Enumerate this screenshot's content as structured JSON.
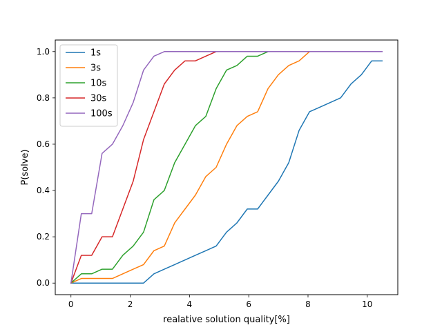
{
  "chart_data": {
    "type": "line",
    "title": "",
    "xlabel": "realative solution quality[%]",
    "ylabel": "P(solve)",
    "xlim": [
      -0.53,
      11.03
    ],
    "ylim": [
      -0.05,
      1.05
    ],
    "xticks": [
      0,
      2,
      4,
      6,
      8,
      10
    ],
    "xtick_labels": [
      "0",
      "2",
      "4",
      "6",
      "8",
      "10"
    ],
    "yticks": [
      0.0,
      0.2,
      0.4,
      0.6,
      0.8,
      1.0
    ],
    "ytick_labels": [
      "0.0",
      "0.2",
      "0.4",
      "0.6",
      "0.8",
      "1.0"
    ],
    "grid": false,
    "legend": "top-left",
    "series": [
      {
        "name": "1s",
        "color": "#1f77b4",
        "x": [
          0,
          0.35,
          0.7,
          1.05,
          1.4,
          1.75,
          2.1,
          2.45,
          2.8,
          3.15,
          3.5,
          3.85,
          4.2,
          4.55,
          4.9,
          5.25,
          5.6,
          5.95,
          6.3,
          6.65,
          7.0,
          7.35,
          7.7,
          8.05,
          8.4,
          8.75,
          9.1,
          9.45,
          9.8,
          10.15,
          10.5
        ],
        "y": [
          0,
          0,
          0,
          0,
          0,
          0,
          0,
          0,
          0.04,
          0.06,
          0.08,
          0.1,
          0.12,
          0.14,
          0.16,
          0.22,
          0.26,
          0.32,
          0.32,
          0.38,
          0.44,
          0.52,
          0.66,
          0.74,
          0.76,
          0.78,
          0.8,
          0.86,
          0.9,
          0.96,
          0.96
        ]
      },
      {
        "name": "3s",
        "color": "#ff7f0e",
        "x": [
          0,
          0.35,
          0.7,
          1.05,
          1.4,
          1.75,
          2.1,
          2.45,
          2.8,
          3.15,
          3.5,
          3.85,
          4.2,
          4.55,
          4.9,
          5.25,
          5.6,
          5.95,
          6.3,
          6.65,
          7.0,
          7.35,
          7.7,
          8.05,
          8.4,
          8.75,
          9.1,
          9.45,
          9.8,
          10.15,
          10.5
        ],
        "y": [
          0,
          0.02,
          0.02,
          0.02,
          0.02,
          0.04,
          0.06,
          0.08,
          0.14,
          0.16,
          0.26,
          0.32,
          0.38,
          0.46,
          0.5,
          0.6,
          0.68,
          0.72,
          0.74,
          0.84,
          0.9,
          0.94,
          0.96,
          1.0,
          1.0,
          1.0,
          1.0,
          1.0,
          1.0,
          1.0,
          1.0
        ]
      },
      {
        "name": "10s",
        "color": "#2ca02c",
        "x": [
          0,
          0.35,
          0.7,
          1.05,
          1.4,
          1.75,
          2.1,
          2.45,
          2.8,
          3.15,
          3.5,
          3.85,
          4.2,
          4.55,
          4.9,
          5.25,
          5.6,
          5.95,
          6.3,
          6.65,
          7.0,
          7.35,
          7.7,
          8.05,
          8.4,
          8.75,
          9.1,
          9.45,
          9.8,
          10.15,
          10.5
        ],
        "y": [
          0,
          0.04,
          0.04,
          0.06,
          0.06,
          0.12,
          0.16,
          0.22,
          0.36,
          0.4,
          0.52,
          0.6,
          0.68,
          0.72,
          0.84,
          0.92,
          0.94,
          0.98,
          0.98,
          1.0,
          1.0,
          1.0,
          1.0,
          1.0,
          1.0,
          1.0,
          1.0,
          1.0,
          1.0,
          1.0,
          1.0
        ]
      },
      {
        "name": "30s",
        "color": "#d62728",
        "x": [
          0,
          0.35,
          0.7,
          1.05,
          1.4,
          1.75,
          2.1,
          2.45,
          2.8,
          3.15,
          3.5,
          3.85,
          4.2,
          4.55,
          4.9,
          5.25,
          5.6,
          5.95,
          6.3,
          6.65,
          7.0,
          7.35,
          7.7,
          8.05,
          8.4,
          8.75,
          9.1,
          9.45,
          9.8,
          10.15,
          10.5
        ],
        "y": [
          0,
          0.12,
          0.12,
          0.2,
          0.2,
          0.32,
          0.44,
          0.62,
          0.74,
          0.86,
          0.92,
          0.96,
          0.96,
          0.98,
          1.0,
          1.0,
          1.0,
          1.0,
          1.0,
          1.0,
          1.0,
          1.0,
          1.0,
          1.0,
          1.0,
          1.0,
          1.0,
          1.0,
          1.0,
          1.0,
          1.0
        ]
      },
      {
        "name": "100s",
        "color": "#9467bd",
        "x": [
          0,
          0.35,
          0.7,
          1.05,
          1.4,
          1.75,
          2.1,
          2.45,
          2.8,
          3.15,
          3.5,
          3.85,
          4.2,
          4.55,
          4.9,
          5.25,
          5.6,
          5.95,
          6.3,
          6.65,
          7.0,
          7.35,
          7.7,
          8.05,
          8.4,
          8.75,
          9.1,
          9.45,
          9.8,
          10.15,
          10.5
        ],
        "y": [
          0,
          0.3,
          0.3,
          0.56,
          0.6,
          0.68,
          0.78,
          0.92,
          0.98,
          1.0,
          1.0,
          1.0,
          1.0,
          1.0,
          1.0,
          1.0,
          1.0,
          1.0,
          1.0,
          1.0,
          1.0,
          1.0,
          1.0,
          1.0,
          1.0,
          1.0,
          1.0,
          1.0,
          1.0,
          1.0,
          1.0
        ]
      }
    ]
  }
}
